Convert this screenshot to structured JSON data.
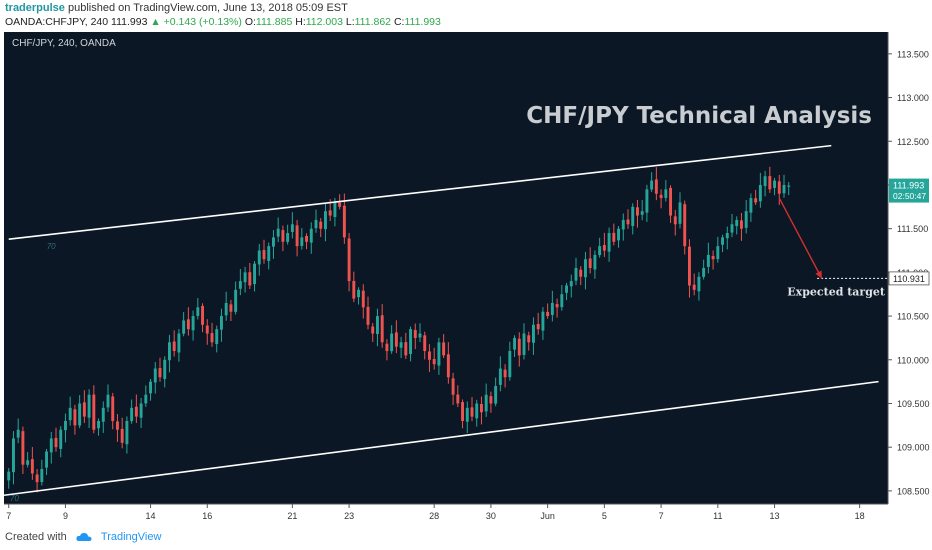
{
  "header": {
    "author": "traderpulse",
    "published_text": "published on TradingView.com, June 13, 2018 05:09 EST",
    "symbol_line": "OANDA:CHFJPY, 240",
    "last": "111.993",
    "change": "+0.143 (+0.13%)",
    "o_label": "O:",
    "o": "111.885",
    "h_label": "H:",
    "h": "112.003",
    "l_label": "L:",
    "l": "111.862",
    "c_label": "C:",
    "c": "111.993"
  },
  "footer": {
    "created_with": "Created with",
    "brand": "TradingView"
  },
  "colors": {
    "background": "#0b1724",
    "up": "#26a69a",
    "down": "#ef5350",
    "channel": "#ffffff",
    "arrow": "#d32f2f",
    "title": "#c9cdd2",
    "price_tag": "#26a69a"
  },
  "chart_data": {
    "type": "candlestick",
    "pane_label": "CHF/JPY, 240, OANDA",
    "title": "CHF/JPY Technical Analysis",
    "annotation": "Expected target",
    "channel_markers": [
      "70",
      "70"
    ],
    "y_ticks": [
      "113.500",
      "113.000",
      "112.500",
      "112.000",
      "111.500",
      "111.000",
      "110.500",
      "110.000",
      "109.500",
      "109.000",
      "108.500"
    ],
    "ylim": [
      108.35,
      113.75
    ],
    "x_ticks": [
      {
        "label": "7",
        "x": 0
      },
      {
        "label": "9",
        "x": 12
      },
      {
        "label": "14",
        "x": 30
      },
      {
        "label": "16",
        "x": 42
      },
      {
        "label": "21",
        "x": 60
      },
      {
        "label": "23",
        "x": 72
      },
      {
        "label": "28",
        "x": 90
      },
      {
        "label": "30",
        "x": 102
      },
      {
        "label": "Jun",
        "x": 114
      },
      {
        "label": "5",
        "x": 126
      },
      {
        "label": "7",
        "x": 138
      },
      {
        "label": "11",
        "x": 150
      },
      {
        "label": "13",
        "x": 162
      },
      {
        "label": "18",
        "x": 180
      }
    ],
    "xlim": [
      -1,
      186
    ],
    "channel_upper": {
      "from": [
        0,
        111.38
      ],
      "to": [
        174,
        112.45
      ]
    },
    "channel_lower": {
      "from": [
        -1,
        108.45
      ],
      "to": [
        184,
        109.75
      ]
    },
    "forecast_arrow": {
      "from": [
        163,
        111.85
      ],
      "to": [
        172,
        110.93
      ]
    },
    "target": {
      "price": "110.931",
      "value": 110.931
    },
    "last_price": {
      "price": "111.993",
      "countdown": "02:50:47",
      "value": 111.993
    },
    "closes": [
      108.72,
      109.1,
      109.2,
      108.8,
      108.85,
      108.7,
      108.6,
      108.75,
      108.95,
      109.1,
      109.0,
      109.2,
      109.3,
      109.45,
      109.25,
      109.5,
      109.35,
      109.6,
      109.2,
      109.3,
      109.45,
      109.6,
      109.3,
      109.2,
      109.05,
      109.3,
      109.45,
      109.35,
      109.5,
      109.6,
      109.75,
      109.9,
      109.8,
      110.0,
      110.2,
      110.1,
      110.3,
      110.45,
      110.35,
      110.5,
      110.6,
      110.4,
      110.3,
      110.2,
      110.35,
      110.5,
      110.65,
      110.55,
      110.8,
      110.9,
      111.0,
      110.85,
      111.1,
      111.25,
      111.15,
      111.3,
      111.4,
      111.5,
      111.35,
      111.45,
      111.55,
      111.3,
      111.4,
      111.35,
      111.5,
      111.6,
      111.5,
      111.7,
      111.65,
      111.8,
      111.75,
      111.4,
      110.9,
      110.7,
      110.8,
      110.6,
      110.4,
      110.3,
      110.5,
      110.2,
      110.1,
      110.3,
      110.15,
      110.2,
      110.05,
      110.35,
      110.25,
      110.3,
      110.1,
      110.0,
      109.95,
      110.2,
      110.05,
      109.8,
      109.6,
      109.5,
      109.3,
      109.45,
      109.35,
      109.5,
      109.4,
      109.6,
      109.5,
      109.7,
      109.9,
      109.8,
      110.1,
      110.25,
      110.05,
      110.3,
      110.2,
      110.4,
      110.35,
      110.55,
      110.5,
      110.65,
      110.6,
      110.75,
      110.85,
      110.9,
      111.05,
      110.95,
      111.15,
      111.05,
      111.2,
      111.3,
      111.25,
      111.45,
      111.35,
      111.5,
      111.6,
      111.55,
      111.75,
      111.65,
      111.7,
      111.95,
      112.05,
      111.9,
      111.85,
      111.95,
      111.65,
      111.55,
      111.8,
      111.3,
      110.85,
      110.8,
      110.95,
      111.05,
      111.2,
      111.15,
      111.3,
      111.4,
      111.45,
      111.55,
      111.6,
      111.5,
      111.7,
      111.85,
      111.8,
      112.0,
      112.1,
      111.95,
      112.05,
      111.9,
      112.0,
      111.993
    ]
  }
}
